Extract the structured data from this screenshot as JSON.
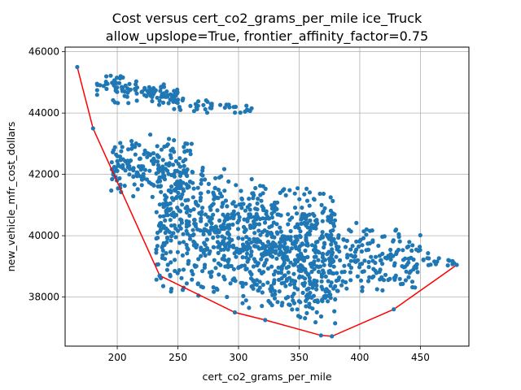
{
  "chart_data": {
    "type": "scatter",
    "title": "Cost versus cert_co2_grams_per_mile ice_Truck",
    "subtitle": "allow_upslope=True, frontier_affinity_factor=0.75",
    "xlabel": "cert_co2_grams_per_mile",
    "ylabel": "new_vehicle_mfr_cost_dollars",
    "xlim": [
      157,
      490
    ],
    "ylim": [
      36400,
      46150
    ],
    "xticks": [
      200,
      250,
      300,
      350,
      400,
      450
    ],
    "yticks": [
      38000,
      40000,
      42000,
      44000,
      46000
    ],
    "grid": true,
    "scatter_color": "#1f77b4",
    "frontier_color": "#ff0000",
    "frontier": {
      "x": [
        167,
        180,
        235,
        297,
        322,
        368,
        377,
        428,
        480
      ],
      "y": [
        45500,
        43500,
        38700,
        37500,
        37250,
        36750,
        36720,
        37600,
        39050
      ]
    },
    "scatter_clusters": [
      {
        "x_range": [
          183,
          250
        ],
        "y_low": [
          44200,
          44200
        ],
        "y_high": [
          45600,
          44900
        ],
        "count": 110
      },
      {
        "x_range": [
          246,
          312
        ],
        "y_low": [
          44000,
          43950
        ],
        "y_high": [
          44800,
          44200
        ],
        "count": 40
      },
      {
        "x_range": [
          195,
          262
        ],
        "y_low": [
          41400,
          40600
        ],
        "y_high": [
          43300,
          43400
        ],
        "count": 190
      },
      {
        "x_range": [
          232,
          300
        ],
        "y_low": [
          38100,
          37700
        ],
        "y_high": [
          42900,
          42300
        ],
        "count": 380
      },
      {
        "x_range": [
          300,
          380
        ],
        "y_low": [
          37400,
          36900
        ],
        "y_high": [
          42000,
          41600
        ],
        "count": 620
      },
      {
        "x_range": [
          380,
          450
        ],
        "y_low": [
          37900,
          38100
        ],
        "y_high": [
          40700,
          40300
        ],
        "count": 170
      },
      {
        "x_range": [
          450,
          478
        ],
        "y_low": [
          38700,
          38900
        ],
        "y_high": [
          39700,
          39300
        ],
        "count": 18
      }
    ]
  }
}
